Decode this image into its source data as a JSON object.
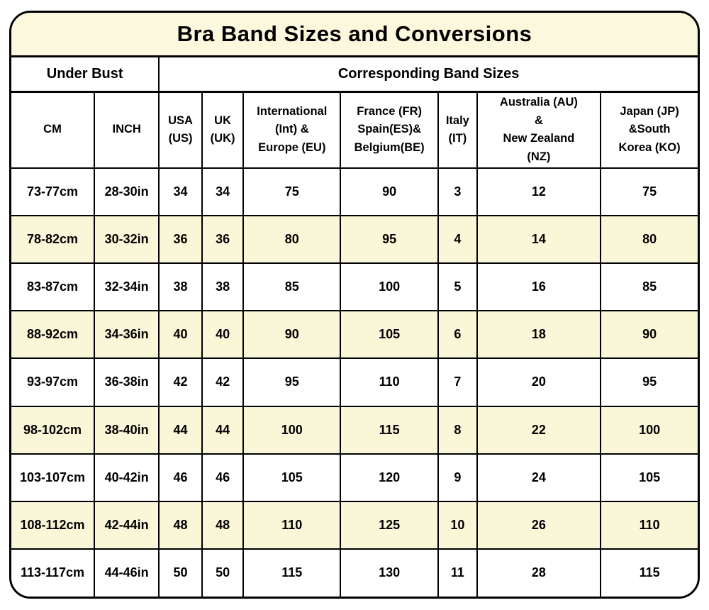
{
  "title": "Bra Band Sizes and Conversions",
  "colors": {
    "title_bg": "#FBF8DD",
    "row_stripe": "#FAF6D8",
    "border": "#000000",
    "background": "#FFFFFF",
    "text": "#000000"
  },
  "chart_data": {
    "type": "table",
    "title": "Bra Band Sizes and Conversions",
    "column_groups": [
      {
        "label": "Under Bust",
        "span": 2
      },
      {
        "label": "Corresponding Band Sizes",
        "span": 7
      }
    ],
    "columns": [
      "CM",
      "INCH",
      "USA\n(US)",
      "UK\n(UK)",
      "International\n(Int) &\nEurope (EU)",
      "France (FR)\nSpain(ES)&\nBelgium(BE)",
      "Italy\n(IT)",
      "Australia (AU)\n&\nNew Zealand\n(NZ)",
      "Japan (JP)\n&South\nKorea (KO)"
    ],
    "rows": [
      [
        "73-77cm",
        "28-30in",
        "34",
        "34",
        "75",
        "90",
        "3",
        "12",
        "75"
      ],
      [
        "78-82cm",
        "30-32in",
        "36",
        "36",
        "80",
        "95",
        "4",
        "14",
        "80"
      ],
      [
        "83-87cm",
        "32-34in",
        "38",
        "38",
        "85",
        "100",
        "5",
        "16",
        "85"
      ],
      [
        "88-92cm",
        "34-36in",
        "40",
        "40",
        "90",
        "105",
        "6",
        "18",
        "90"
      ],
      [
        "93-97cm",
        "36-38in",
        "42",
        "42",
        "95",
        "110",
        "7",
        "20",
        "95"
      ],
      [
        "98-102cm",
        "38-40in",
        "44",
        "44",
        "100",
        "115",
        "8",
        "22",
        "100"
      ],
      [
        "103-107cm",
        "40-42in",
        "46",
        "46",
        "105",
        "120",
        "9",
        "24",
        "105"
      ],
      [
        "108-112cm",
        "42-44in",
        "48",
        "48",
        "110",
        "125",
        "10",
        "26",
        "110"
      ],
      [
        "113-117cm",
        "44-46in",
        "50",
        "50",
        "115",
        "130",
        "11",
        "28",
        "115"
      ]
    ],
    "striped_row_indices": [
      1,
      3,
      5,
      7
    ],
    "legend": "none",
    "grid": "on"
  }
}
